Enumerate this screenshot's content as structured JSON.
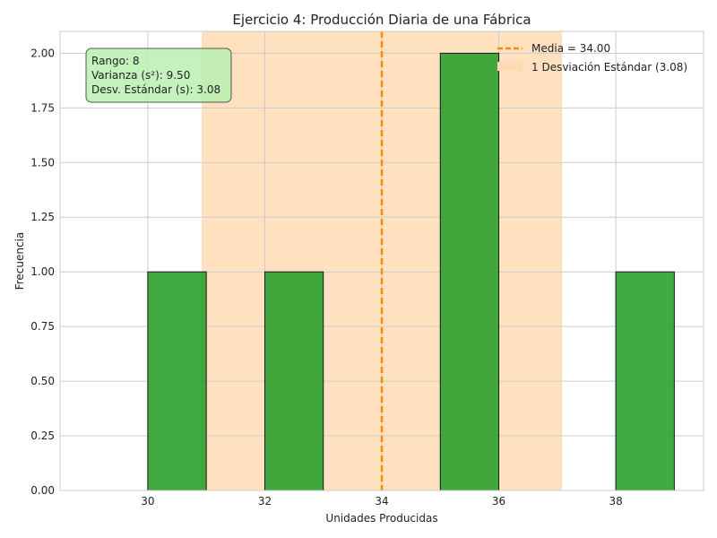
{
  "chart_data": {
    "type": "bar",
    "title": "Ejercicio 4: Producción Diaria de una Fábrica",
    "xlabel": "Unidades Producidas",
    "ylabel": "Frecuencia",
    "xlim": [
      28.5,
      39.5
    ],
    "ylim": [
      0,
      2.1
    ],
    "xticks": [
      30,
      32,
      34,
      36,
      38
    ],
    "yticks": [
      0.0,
      0.25,
      0.5,
      0.75,
      1.0,
      1.25,
      1.5,
      1.75,
      2.0
    ],
    "ytick_labels": [
      "0.00",
      "0.25",
      "0.50",
      "0.75",
      "1.00",
      "1.25",
      "1.50",
      "1.75",
      "2.00"
    ],
    "grid": true,
    "bins": [
      {
        "x0": 29.0,
        "x1": 30.0,
        "value": 0
      },
      {
        "x0": 30.0,
        "x1": 31.0,
        "value": 1
      },
      {
        "x0": 31.0,
        "x1": 32.0,
        "value": 0
      },
      {
        "x0": 32.0,
        "x1": 33.0,
        "value": 1
      },
      {
        "x0": 33.0,
        "x1": 34.0,
        "value": 0
      },
      {
        "x0": 34.0,
        "x1": 35.0,
        "value": 0
      },
      {
        "x0": 35.0,
        "x1": 36.0,
        "value": 2
      },
      {
        "x0": 36.0,
        "x1": 37.0,
        "value": 0
      },
      {
        "x0": 37.0,
        "x1": 38.0,
        "value": 0
      },
      {
        "x0": 38.0,
        "x1": 39.0,
        "value": 1
      }
    ],
    "mean": 34.0,
    "std_band": [
      30.92,
      37.08
    ],
    "colors": {
      "bar": "#2ca02c",
      "mean_line": "#ff8c00",
      "band": "#ffdab0",
      "grid": "#cccccc",
      "stats_box": "#b8f0b0"
    },
    "legend": {
      "position": "top-right",
      "entries": [
        {
          "label": "Media = 34.00",
          "kind": "line"
        },
        {
          "label": "1 Desviación Estándar (3.08)",
          "kind": "patch"
        }
      ]
    },
    "stats_box": {
      "lines": [
        "Rango: 8",
        "Varianza (s²): 9.50",
        "Desv. Estándar (s): 3.08"
      ]
    }
  }
}
